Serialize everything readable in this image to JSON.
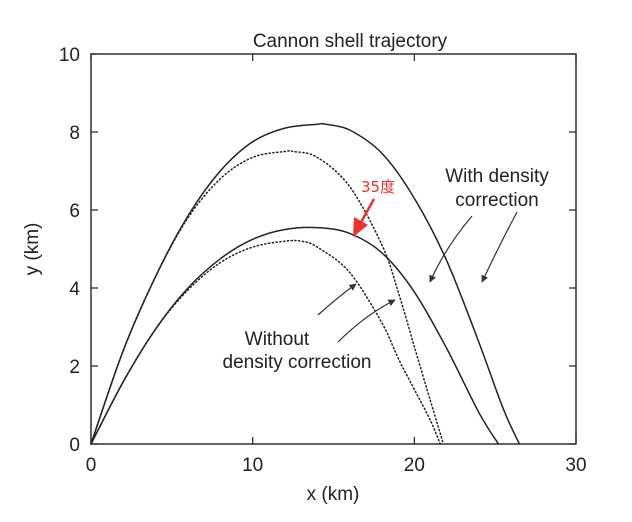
{
  "chart_data": {
    "type": "line",
    "title": "Cannon shell trajectory",
    "xlabel": "x (km)",
    "ylabel": "y (km)",
    "xlim": [
      0,
      30
    ],
    "ylim": [
      0,
      10
    ],
    "xticks": [
      0,
      10,
      20,
      30
    ],
    "yticks": [
      0,
      2,
      4,
      6,
      8,
      10
    ],
    "grid": false,
    "series": [
      {
        "style": "solid",
        "x": [
          0,
          2,
          4,
          6,
          8,
          10,
          12,
          14,
          14.5,
          16,
          18,
          20,
          22,
          24,
          25.5,
          26.5
        ],
        "y": [
          0,
          2.4,
          4.3,
          5.85,
          7.0,
          7.75,
          8.1,
          8.2,
          8.2,
          8.05,
          7.45,
          6.3,
          4.7,
          2.6,
          0.9,
          0
        ]
      },
      {
        "style": "dotted",
        "x": [
          0,
          2,
          4,
          6,
          8,
          10,
          12,
          12.5,
          14,
          16,
          18,
          19,
          20,
          21,
          21.8
        ],
        "y": [
          0,
          2.4,
          4.3,
          5.8,
          6.8,
          7.35,
          7.5,
          7.5,
          7.35,
          6.6,
          5.1,
          3.9,
          2.5,
          1.1,
          0
        ]
      },
      {
        "style": "solid",
        "x": [
          0,
          2,
          4,
          6,
          8,
          10,
          12,
          14,
          16,
          18,
          20,
          22,
          24,
          25.2
        ],
        "y": [
          0,
          1.6,
          2.95,
          4.0,
          4.75,
          5.25,
          5.5,
          5.55,
          5.4,
          4.9,
          3.9,
          2.45,
          0.8,
          0
        ]
      },
      {
        "style": "dotted",
        "x": [
          0,
          2,
          4,
          6,
          8,
          10,
          12,
          13,
          14,
          16,
          18,
          19,
          20,
          21,
          21.6
        ],
        "y": [
          0,
          1.6,
          2.95,
          3.95,
          4.65,
          5.05,
          5.2,
          5.2,
          5.05,
          4.4,
          3.1,
          2.2,
          1.4,
          0.6,
          0
        ]
      }
    ],
    "annotations": [
      {
        "text_lines": [
          "With density",
          "correction"
        ]
      },
      {
        "text_lines": [
          "Without",
          "density correction"
        ]
      },
      {
        "text": "35度",
        "color": "#e8342a"
      }
    ]
  }
}
